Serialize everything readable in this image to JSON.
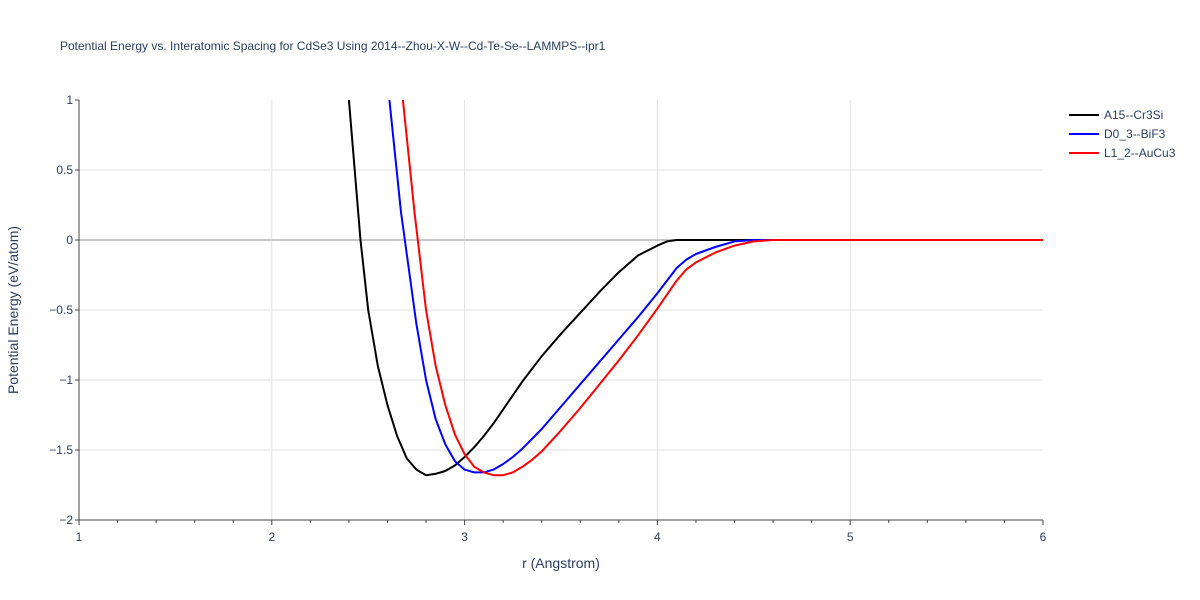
{
  "chart_data": {
    "type": "line",
    "title": "Potential Energy vs. Interatomic Spacing for CdSe3 Using 2014--Zhou-X-W--Cd-Te-Se--LAMMPS--ipr1",
    "xlabel": "r (Angstrom)",
    "ylabel": "Potential Energy (eV/atom)",
    "xlim": [
      1,
      6
    ],
    "ylim": [
      -2,
      1
    ],
    "x_ticks": [
      "1",
      "2",
      "3",
      "4",
      "5",
      "6"
    ],
    "y_ticks": [
      "1",
      "0.5",
      "0",
      "−0.5",
      "−1",
      "−1.5",
      "−2"
    ],
    "grid": true,
    "legend_position": "right",
    "series": [
      {
        "name": "A15--Cr3Si",
        "color": "#000000",
        "x": [
          2.4,
          2.43,
          2.46,
          2.5,
          2.55,
          2.6,
          2.65,
          2.7,
          2.75,
          2.8,
          2.85,
          2.9,
          2.95,
          3.0,
          3.05,
          3.1,
          3.15,
          3.2,
          3.3,
          3.4,
          3.5,
          3.6,
          3.7,
          3.8,
          3.9,
          4.0,
          4.05,
          4.1,
          4.15,
          4.2,
          4.25,
          4.3,
          4.4,
          4.5,
          4.6,
          5.0,
          5.5,
          6.0
        ],
        "y": [
          1.0,
          0.5,
          0.0,
          -0.5,
          -0.9,
          -1.18,
          -1.4,
          -1.56,
          -1.64,
          -1.68,
          -1.67,
          -1.65,
          -1.61,
          -1.55,
          -1.48,
          -1.4,
          -1.31,
          -1.21,
          -1.01,
          -0.83,
          -0.67,
          -0.52,
          -0.37,
          -0.23,
          -0.11,
          -0.04,
          -0.01,
          0.0,
          0.0,
          0.0,
          0.0,
          0.0,
          0.0,
          0.0,
          0.0,
          0.0,
          0.0,
          0.0
        ]
      },
      {
        "name": "D0_3--BiF3",
        "color": "#0000ff",
        "x": [
          2.61,
          2.64,
          2.67,
          2.7,
          2.75,
          2.8,
          2.85,
          2.9,
          2.95,
          3.0,
          3.05,
          3.1,
          3.15,
          3.2,
          3.25,
          3.3,
          3.4,
          3.5,
          3.6,
          3.7,
          3.8,
          3.9,
          4.0,
          4.05,
          4.1,
          4.15,
          4.2,
          4.3,
          4.4,
          4.5,
          4.6,
          5.0,
          5.5,
          6.0
        ],
        "y": [
          1.0,
          0.6,
          0.2,
          -0.1,
          -0.6,
          -1.0,
          -1.28,
          -1.46,
          -1.58,
          -1.64,
          -1.66,
          -1.66,
          -1.64,
          -1.6,
          -1.55,
          -1.49,
          -1.35,
          -1.19,
          -1.03,
          -0.87,
          -0.71,
          -0.55,
          -0.38,
          -0.29,
          -0.2,
          -0.14,
          -0.1,
          -0.05,
          -0.01,
          0.0,
          0.0,
          0.0,
          0.0,
          0.0
        ]
      },
      {
        "name": "L1_2--AuCu3",
        "color": "#ff0000",
        "x": [
          2.68,
          2.71,
          2.74,
          2.77,
          2.8,
          2.85,
          2.9,
          2.95,
          3.0,
          3.05,
          3.1,
          3.15,
          3.2,
          3.25,
          3.3,
          3.35,
          3.4,
          3.5,
          3.6,
          3.7,
          3.8,
          3.9,
          4.0,
          4.05,
          4.1,
          4.15,
          4.2,
          4.3,
          4.4,
          4.5,
          4.6,
          5.0,
          5.5,
          6.0
        ],
        "y": [
          1.0,
          0.6,
          0.2,
          -0.15,
          -0.5,
          -0.9,
          -1.18,
          -1.39,
          -1.53,
          -1.62,
          -1.66,
          -1.68,
          -1.68,
          -1.66,
          -1.62,
          -1.57,
          -1.51,
          -1.36,
          -1.2,
          -1.03,
          -0.86,
          -0.68,
          -0.49,
          -0.39,
          -0.29,
          -0.21,
          -0.16,
          -0.09,
          -0.04,
          -0.01,
          0.0,
          0.0,
          0.0,
          0.0
        ]
      }
    ]
  }
}
